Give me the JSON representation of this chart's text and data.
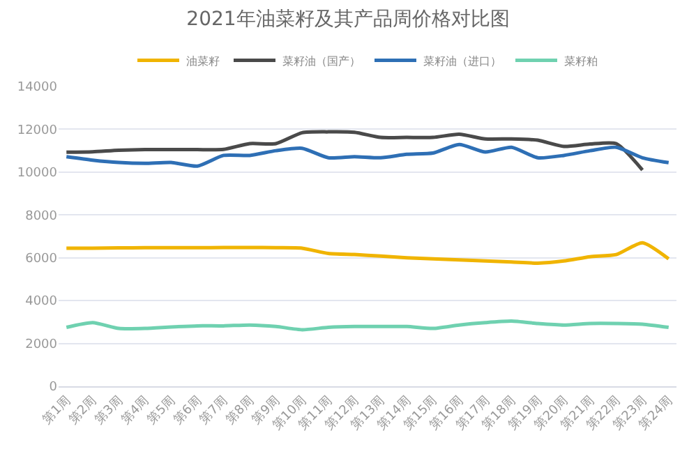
{
  "chart_data": {
    "type": "line",
    "title": "2021年油菜籽及其产品周价格对比图",
    "categories": [
      "第1周",
      "第2周",
      "第3周",
      "第4周",
      "第5周",
      "第6周",
      "第7周",
      "第8周",
      "第9周",
      "第10周",
      "第11周",
      "第12周",
      "第13周",
      "第14周",
      "第15周",
      "第16周",
      "第17周",
      "第18周",
      "第19周",
      "第20周",
      "第21周",
      "第22周",
      "第23周",
      "第24周"
    ],
    "series": [
      {
        "name": "油菜籽",
        "color": "#f0b400",
        "values": [
          6450,
          6450,
          6460,
          6470,
          6470,
          6470,
          6480,
          6480,
          6470,
          6450,
          6200,
          6150,
          6080,
          6000,
          5950,
          5900,
          5850,
          5800,
          5750,
          5850,
          6050,
          6150,
          6700,
          5950
        ]
      },
      {
        "name": "菜籽油（国产）",
        "color": "#4a4a4a",
        "values": [
          10930,
          10950,
          11020,
          11050,
          11050,
          11050,
          11060,
          11330,
          11330,
          11840,
          11880,
          11860,
          11620,
          11620,
          11620,
          11770,
          11550,
          11550,
          11490,
          11200,
          11310,
          11330,
          10100,
          null
        ]
      },
      {
        "name": "菜籽油（进口）",
        "color": "#2e6fb5",
        "values": [
          10720,
          10560,
          10450,
          10410,
          10450,
          10280,
          10780,
          10780,
          11000,
          11110,
          10670,
          10720,
          10670,
          10830,
          10890,
          11290,
          10940,
          11160,
          10670,
          10780,
          11000,
          11160,
          10670,
          10440
        ]
      },
      {
        "name": "菜籽粕",
        "color": "#6fd1b0",
        "values": [
          2750,
          2970,
          2700,
          2700,
          2770,
          2820,
          2820,
          2860,
          2790,
          2640,
          2750,
          2790,
          2790,
          2790,
          2700,
          2860,
          2970,
          3040,
          2930,
          2860,
          2930,
          2930,
          2900,
          2750
        ]
      }
    ],
    "ylim": [
      0,
      14000
    ],
    "yticks": [
      0,
      2000,
      4000,
      6000,
      8000,
      10000,
      12000,
      14000
    ],
    "grid": "y",
    "legend": "top",
    "marker": "none",
    "line_style": "solid"
  }
}
